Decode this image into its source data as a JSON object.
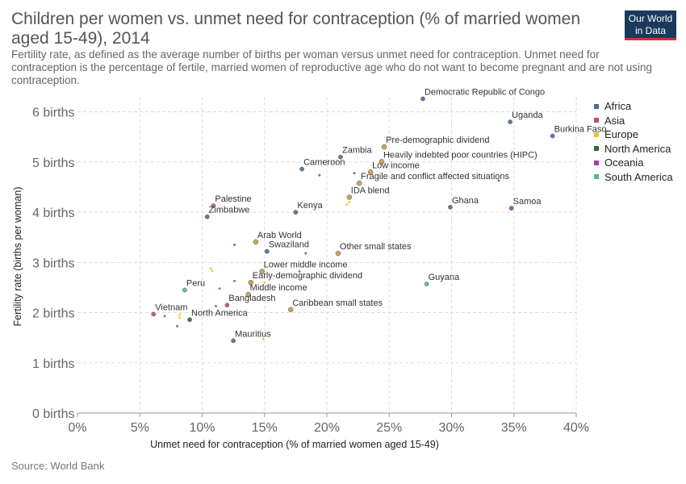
{
  "header": {
    "title": "Children per women vs. unmet need for contraception (% of married women aged 15-49), 2014",
    "subtitle": "Fertility rate, as defined as the average number of births per woman versus unmet need for contraception. Unmet need for contraception is the percentage of fertile, married women of reproductive age who do not want to become pregnant and are not using contraception.",
    "logo_line1": "Our World",
    "logo_line2": "in Data"
  },
  "footer": {
    "source": "Source: World Bank"
  },
  "colors": {
    "Africa": "#4c6a9c",
    "Asia": "#c15065",
    "Europe": "#f2c22e",
    "North America": "#2f6b35",
    "Oceania": "#a13ea8",
    "South America": "#5ab58e",
    "Aggregate": "#c79a4c",
    "grid": "#dddddd",
    "axis": "#999999"
  },
  "chart_data": {
    "type": "scatter",
    "title": "Children per women vs. unmet need for contraception (% of married women aged 15-49), 2014",
    "xlabel": "Unmet need for contraception (% of married women aged 15-49)",
    "ylabel": "Fertility rate (births per woman)",
    "xlim": [
      0,
      40
    ],
    "ylim": [
      0,
      6.3
    ],
    "xticks": [
      0,
      5,
      10,
      15,
      20,
      25,
      30,
      35,
      40
    ],
    "xtick_labels": [
      "0%",
      "5%",
      "10%",
      "15%",
      "20%",
      "25%",
      "30%",
      "35%",
      "40%"
    ],
    "yticks": [
      0,
      1,
      2,
      3,
      4,
      5,
      6
    ],
    "ytick_labels": [
      "0 births",
      "1 births",
      "2 births",
      "3 births",
      "4 births",
      "5 births",
      "6 births"
    ],
    "grid": true,
    "legend_position": "right",
    "legend": [
      "Africa",
      "Asia",
      "Europe",
      "North America",
      "Oceania",
      "South America"
    ],
    "points": [
      {
        "label": "Democratic Republic of Congo",
        "x": 27.7,
        "y": 6.26,
        "group": "Africa",
        "size": 2.6
      },
      {
        "label": "Uganda",
        "x": 34.7,
        "y": 5.8,
        "group": "Africa",
        "size": 2.6
      },
      {
        "label": "Burkina Faso",
        "x": 38.1,
        "y": 5.52,
        "group": "Africa",
        "size": 2.6
      },
      {
        "label": "Pre-demographic dividend",
        "x": 24.6,
        "y": 5.3,
        "group": "Aggregate",
        "size": 3
      },
      {
        "label": "Zambia",
        "x": 21.1,
        "y": 5.1,
        "group": "Africa",
        "size": 2.6
      },
      {
        "label": "Heavily indebted poor countries (HIPC)",
        "x": 24.4,
        "y": 5.01,
        "group": "Aggregate",
        "size": 3
      },
      {
        "label": "Cameroon",
        "x": 18.0,
        "y": 4.86,
        "group": "Africa",
        "size": 2.6
      },
      {
        "label": "Low income",
        "x": 23.5,
        "y": 4.8,
        "group": "Aggregate",
        "size": 3
      },
      {
        "label": "Fragile and conflict affected situations",
        "x": 22.6,
        "y": 4.58,
        "group": "Aggregate",
        "size": 3
      },
      {
        "label": "IDA blend",
        "x": 21.8,
        "y": 4.3,
        "group": "Aggregate",
        "size": 3
      },
      {
        "label": "Ghana",
        "x": 29.9,
        "y": 4.1,
        "group": "Africa",
        "size": 2.6
      },
      {
        "label": "Samoa",
        "x": 34.8,
        "y": 4.08,
        "group": "Oceania",
        "size": 2.6
      },
      {
        "label": "Palestine",
        "x": 10.9,
        "y": 4.13,
        "group": "Asia",
        "size": 2.6
      },
      {
        "label": "Kenya",
        "x": 17.5,
        "y": 4.0,
        "group": "Africa",
        "size": 2.6
      },
      {
        "label": "Zimbabwe",
        "x": 10.4,
        "y": 3.91,
        "group": "Africa",
        "size": 2.6
      },
      {
        "label": "Arab World",
        "x": 14.3,
        "y": 3.41,
        "group": "Aggregate",
        "size": 3
      },
      {
        "label": "Swaziland",
        "x": 15.2,
        "y": 3.22,
        "group": "Africa",
        "size": 2.6
      },
      {
        "label": "Other small states",
        "x": 20.9,
        "y": 3.18,
        "group": "Aggregate",
        "size": 3
      },
      {
        "label": "Lower middle income",
        "x": 14.8,
        "y": 2.82,
        "group": "Aggregate",
        "size": 3
      },
      {
        "label": "Early-demographic dividend",
        "x": 13.9,
        "y": 2.6,
        "group": "Aggregate",
        "size": 3
      },
      {
        "label": "Guyana",
        "x": 28.0,
        "y": 2.57,
        "group": "South America",
        "size": 2.6
      },
      {
        "label": "Peru",
        "x": 8.6,
        "y": 2.45,
        "group": "South America",
        "size": 2.6
      },
      {
        "label": "Middle income",
        "x": 13.7,
        "y": 2.36,
        "group": "Aggregate",
        "size": 3
      },
      {
        "label": "Bangladesh",
        "x": 12.0,
        "y": 2.15,
        "group": "Asia",
        "size": 2.6
      },
      {
        "label": "Caribbean small states",
        "x": 17.1,
        "y": 2.06,
        "group": "Aggregate",
        "size": 3
      },
      {
        "label": "Vietnam",
        "x": 6.1,
        "y": 1.97,
        "group": "Asia",
        "size": 2.6
      },
      {
        "label": "North America",
        "x": 9.0,
        "y": 1.86,
        "group": "North America",
        "size": 2.6
      },
      {
        "label": "Mauritius",
        "x": 12.5,
        "y": 1.44,
        "group": "Africa",
        "size": 2.6
      },
      {
        "label": "",
        "x": 19.4,
        "y": 4.74,
        "group": "Africa",
        "size": 1.5
      },
      {
        "label": "",
        "x": 22.2,
        "y": 4.78,
        "group": "Africa",
        "size": 1.5
      },
      {
        "label": "",
        "x": 33.8,
        "y": 4.63,
        "group": "Africa",
        "size": 1.5
      },
      {
        "label": "",
        "x": 21.6,
        "y": 4.15,
        "group": "Europe",
        "size": 1.5
      },
      {
        "label": "",
        "x": 21.8,
        "y": 4.2,
        "group": "Europe",
        "size": 1.5
      },
      {
        "label": "",
        "x": 12.6,
        "y": 3.35,
        "group": "Africa",
        "size": 1.5
      },
      {
        "label": "",
        "x": 18.3,
        "y": 3.18,
        "group": "Africa",
        "size": 1.5
      },
      {
        "label": "",
        "x": 10.7,
        "y": 2.88,
        "group": "Europe",
        "size": 1.5
      },
      {
        "label": "",
        "x": 10.8,
        "y": 2.83,
        "group": "Europe",
        "size": 1.5
      },
      {
        "label": "",
        "x": 17.8,
        "y": 2.82,
        "group": "Asia",
        "size": 1.5
      },
      {
        "label": "",
        "x": 12.6,
        "y": 2.63,
        "group": "Asia",
        "size": 1.5
      },
      {
        "label": "",
        "x": 15.0,
        "y": 2.6,
        "group": "Europe",
        "size": 1.5
      },
      {
        "label": "",
        "x": 11.4,
        "y": 2.48,
        "group": "Asia",
        "size": 1.5
      },
      {
        "label": "",
        "x": 11.1,
        "y": 2.13,
        "group": "Asia",
        "size": 1.5
      },
      {
        "label": "",
        "x": 7.0,
        "y": 1.93,
        "group": "Asia",
        "size": 1.5
      },
      {
        "label": "",
        "x": 8.2,
        "y": 1.9,
        "group": "Europe",
        "size": 1.5
      },
      {
        "label": "",
        "x": 8.2,
        "y": 1.96,
        "group": "Europe",
        "size": 1.5
      },
      {
        "label": "",
        "x": 8.0,
        "y": 1.73,
        "group": "Africa",
        "size": 1.5
      },
      {
        "label": "",
        "x": 14.9,
        "y": 1.47,
        "group": "Europe",
        "size": 1.5
      }
    ]
  }
}
